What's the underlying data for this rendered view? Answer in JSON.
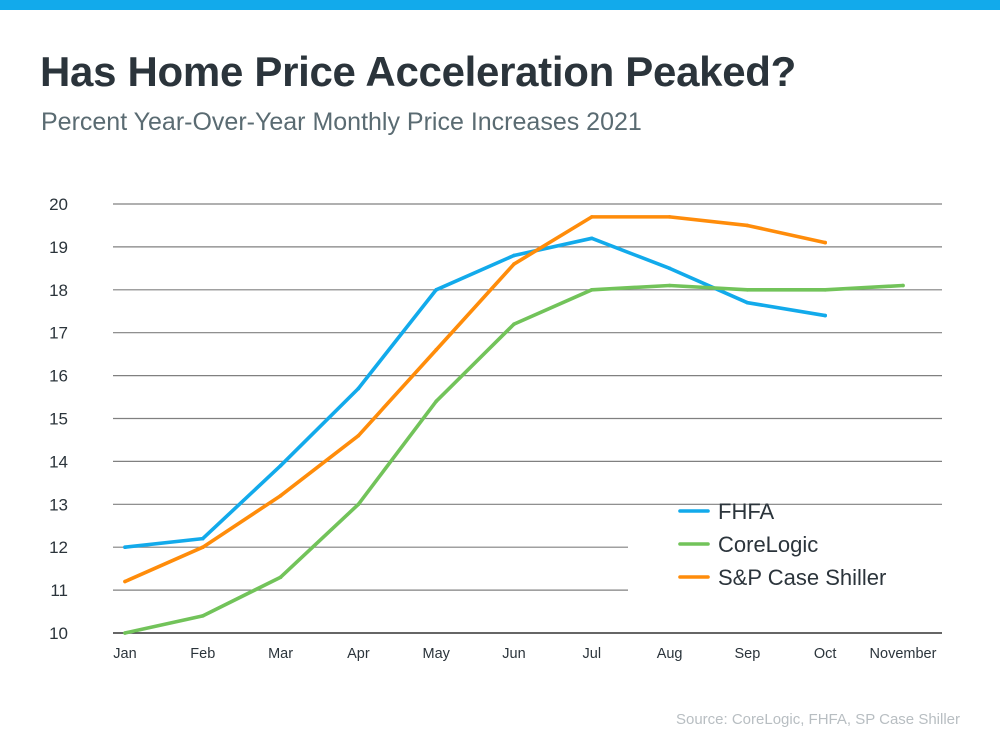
{
  "header": {
    "title": "Has Home Price Acceleration Peaked?",
    "subtitle": "Percent Year-Over-Year Monthly Price Increases 2021"
  },
  "footer": {
    "source": "Source: CoreLogic, FHFA, SP Case Shiller"
  },
  "colors": {
    "top_bar": "#12aaeb",
    "title": "#2b343b",
    "subtitle": "#5a6b72",
    "grid": "#808080",
    "axis_text": "#2b343b",
    "source": "#b8bec2"
  },
  "chart_data": {
    "type": "line",
    "title": "Has Home Price Acceleration Peaked?",
    "subtitle": "Percent Year-Over-Year Monthly Price Increases 2021",
    "xlabel": "",
    "ylabel": "",
    "categories": [
      "Jan",
      "Feb",
      "Mar",
      "Apr",
      "May",
      "Jun",
      "Jul",
      "Aug",
      "Sep",
      "Oct",
      "November"
    ],
    "ylim": [
      10,
      20
    ],
    "yticks": [
      10,
      11,
      12,
      13,
      14,
      15,
      16,
      17,
      18,
      19,
      20
    ],
    "grid": true,
    "legend_position": "bottom-right",
    "series": [
      {
        "name": "FHFA",
        "color": "#12aaeb",
        "values": [
          12.0,
          12.2,
          13.9,
          15.7,
          18.0,
          18.8,
          19.2,
          18.5,
          17.7,
          17.4,
          null
        ]
      },
      {
        "name": "CoreLogic",
        "color": "#72c35a",
        "values": [
          10.0,
          10.4,
          11.3,
          13.0,
          15.4,
          17.2,
          18.0,
          18.1,
          18.0,
          18.0,
          18.1
        ]
      },
      {
        "name": "S&P Case Shiller",
        "color": "#ff8c0a",
        "values": [
          11.2,
          12.0,
          13.2,
          14.6,
          16.6,
          18.6,
          19.7,
          19.7,
          19.5,
          19.1,
          null
        ]
      }
    ]
  }
}
